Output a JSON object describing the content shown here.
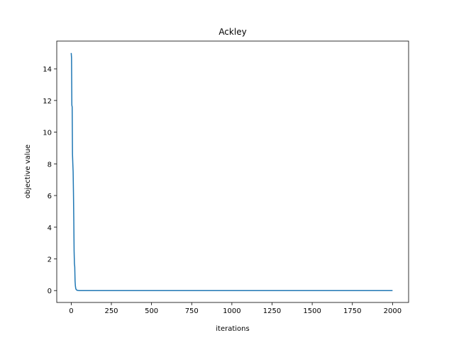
{
  "chart_data": {
    "type": "line",
    "title": "Ackley",
    "xlabel": "iterations",
    "ylabel": "objective value",
    "xlim": [
      -90,
      2100
    ],
    "ylim": [
      -0.75,
      15.75
    ],
    "xticks": [
      0,
      250,
      500,
      750,
      1000,
      1250,
      1500,
      1750,
      2000
    ],
    "yticks": [
      0,
      2,
      4,
      6,
      8,
      10,
      12,
      14
    ],
    "grid": false,
    "legend": "none",
    "line_color": "#1f77b4",
    "series": [
      {
        "x": [
          0,
          2,
          4,
          6,
          8,
          10,
          12,
          14,
          16,
          18,
          20,
          22,
          24,
          26,
          28,
          30,
          35,
          40,
          50,
          100,
          250,
          500,
          750,
          1000,
          1250,
          1500,
          1750,
          2000
        ],
        "y": [
          15.0,
          14.7,
          11.7,
          11.6,
          8.6,
          8.0,
          7.5,
          6.2,
          4.5,
          2.5,
          1.7,
          1.5,
          0.6,
          0.3,
          0.15,
          0.08,
          0.03,
          0.01,
          0.0,
          0.0,
          0.0,
          0.0,
          0.0,
          0.0,
          0.0,
          0.0,
          0.0,
          0.0
        ]
      }
    ]
  }
}
